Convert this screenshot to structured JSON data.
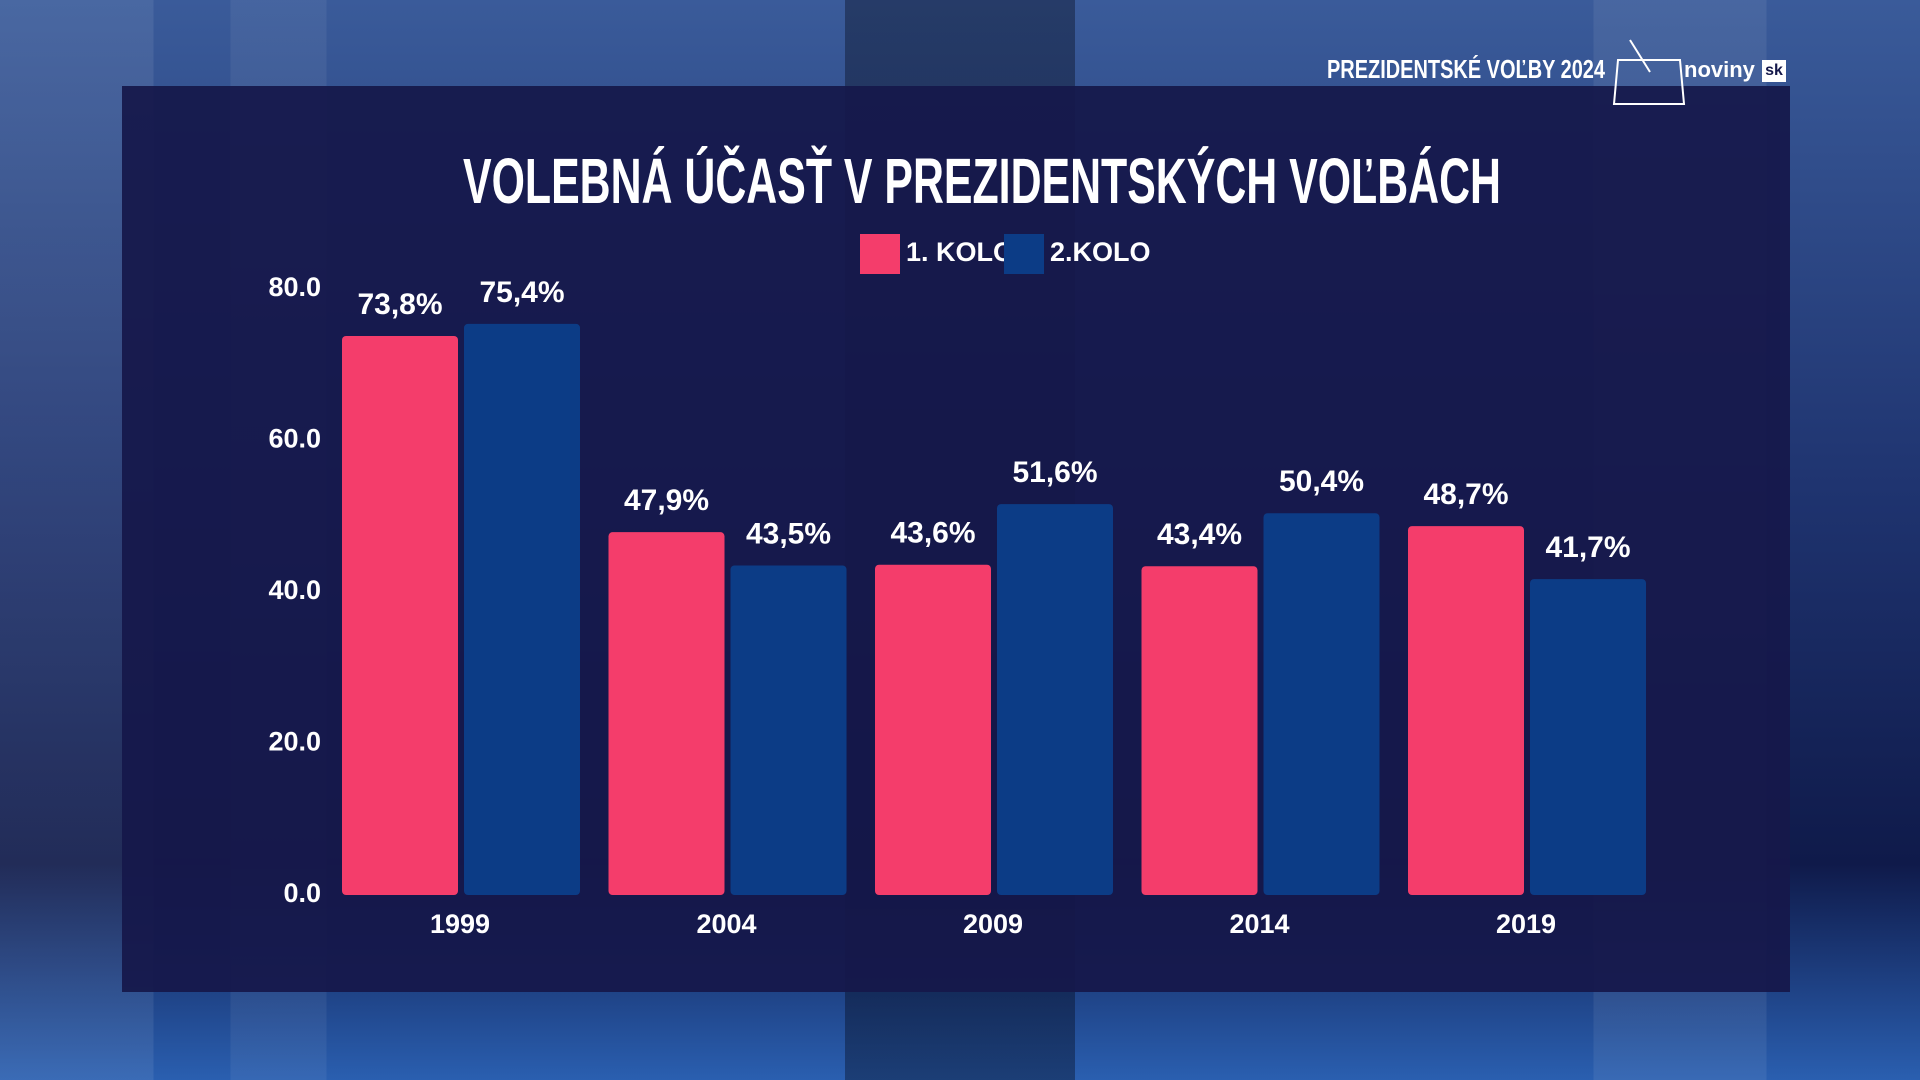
{
  "header": {
    "event": "PREZIDENTSKÉ VOĽBY 2024",
    "logo": "noviny",
    "logo_suffix": "sk"
  },
  "chart_data": {
    "type": "bar",
    "title": "VOLEBNÁ ÚČASŤ V PREZIDENTSKÝCH VOĽBÁCH",
    "categories": [
      "1999",
      "2004",
      "2009",
      "2014",
      "2019"
    ],
    "series": [
      {
        "name": "1. KOLO",
        "color": "#f43d6b",
        "values": [
          73.8,
          47.9,
          43.6,
          43.4,
          48.7
        ],
        "value_labels": [
          "73,8%",
          "47,9%",
          "43,6%",
          "43,4%",
          "48,7%"
        ]
      },
      {
        "name": "2.KOLO",
        "color": "#0c3c86",
        "values": [
          75.4,
          43.5,
          51.6,
          50.4,
          41.7
        ],
        "value_labels": [
          "75,4%",
          "43,5%",
          "51,6%",
          "50,4%",
          "41,7%"
        ]
      }
    ],
    "ylim": [
      0,
      80
    ],
    "yticks": [
      {
        "value": 0,
        "label": "0.0"
      },
      {
        "value": 20,
        "label": "20.0"
      },
      {
        "value": 40,
        "label": "40.0"
      },
      {
        "value": 60,
        "label": "60.0"
      },
      {
        "value": 80,
        "label": "80.0"
      }
    ],
    "grid": false,
    "legend": "top"
  }
}
